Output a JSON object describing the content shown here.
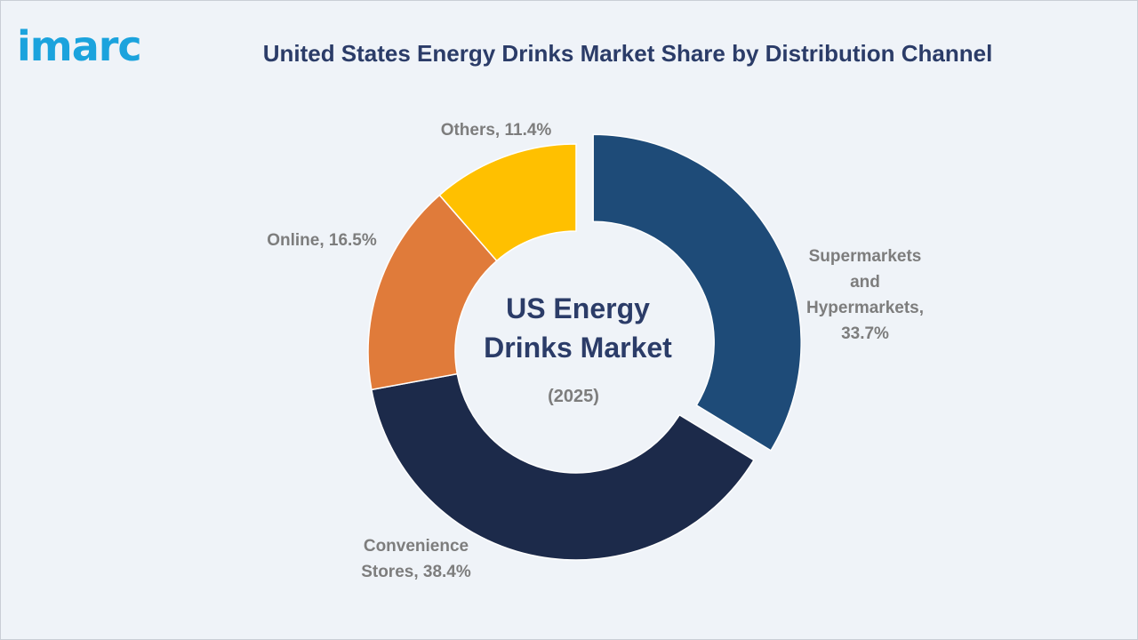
{
  "brand": {
    "logo_text": "imarc"
  },
  "title": "United States Energy Drinks Market Share by Distribution Channel",
  "center": {
    "line1": "US Energy",
    "line2": "Drinks Market",
    "year": "(2025)"
  },
  "chart_data": {
    "type": "pie",
    "style": "donut",
    "unit": "%",
    "slices": [
      {
        "label": "Supermarkets and Hypermarkets",
        "value": 33.7,
        "color": "#1e4b78",
        "label_lines": [
          "Supermarkets",
          "and",
          "Hypermarkets,",
          "33.7%"
        ],
        "exploded": true
      },
      {
        "label": "Convenience Stores",
        "value": 38.4,
        "color": "#1c2a4a",
        "label_lines": [
          "Convenience",
          "Stores, 38.4%"
        ]
      },
      {
        "label": "Online",
        "value": 16.5,
        "color": "#e07b3a",
        "label_lines": [
          "Online, 16.5%"
        ]
      },
      {
        "label": "Others",
        "value": 11.4,
        "color": "#ffc000",
        "label_lines": [
          "Others, 11.4%"
        ]
      }
    ]
  }
}
